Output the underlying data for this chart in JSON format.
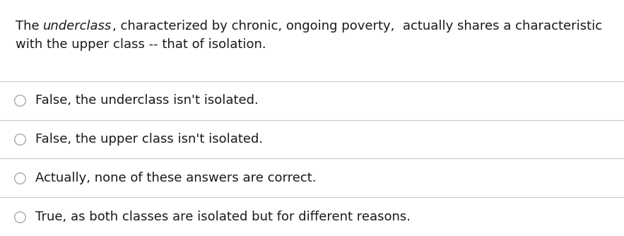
{
  "question_part1": "The ",
  "question_italic": "underclass",
  "question_part2": ", characterized by chronic, ongoing poverty,  actually shares a characteristic",
  "question_line2": "with the upper class -- that of isolation.",
  "options": [
    "False, the underclass isn't isolated.",
    "False, the upper class isn't isolated.",
    "Actually, none of these answers are correct.",
    "True, as both classes are isolated but for different reasons."
  ],
  "bg_color": "#ffffff",
  "text_color": "#1a1a1a",
  "line_color": "#c8c8c8",
  "font_size": 13.0,
  "circle_edge_color": "#aaaaaa",
  "fig_width": 8.83,
  "fig_height": 3.34,
  "dpi": 100
}
